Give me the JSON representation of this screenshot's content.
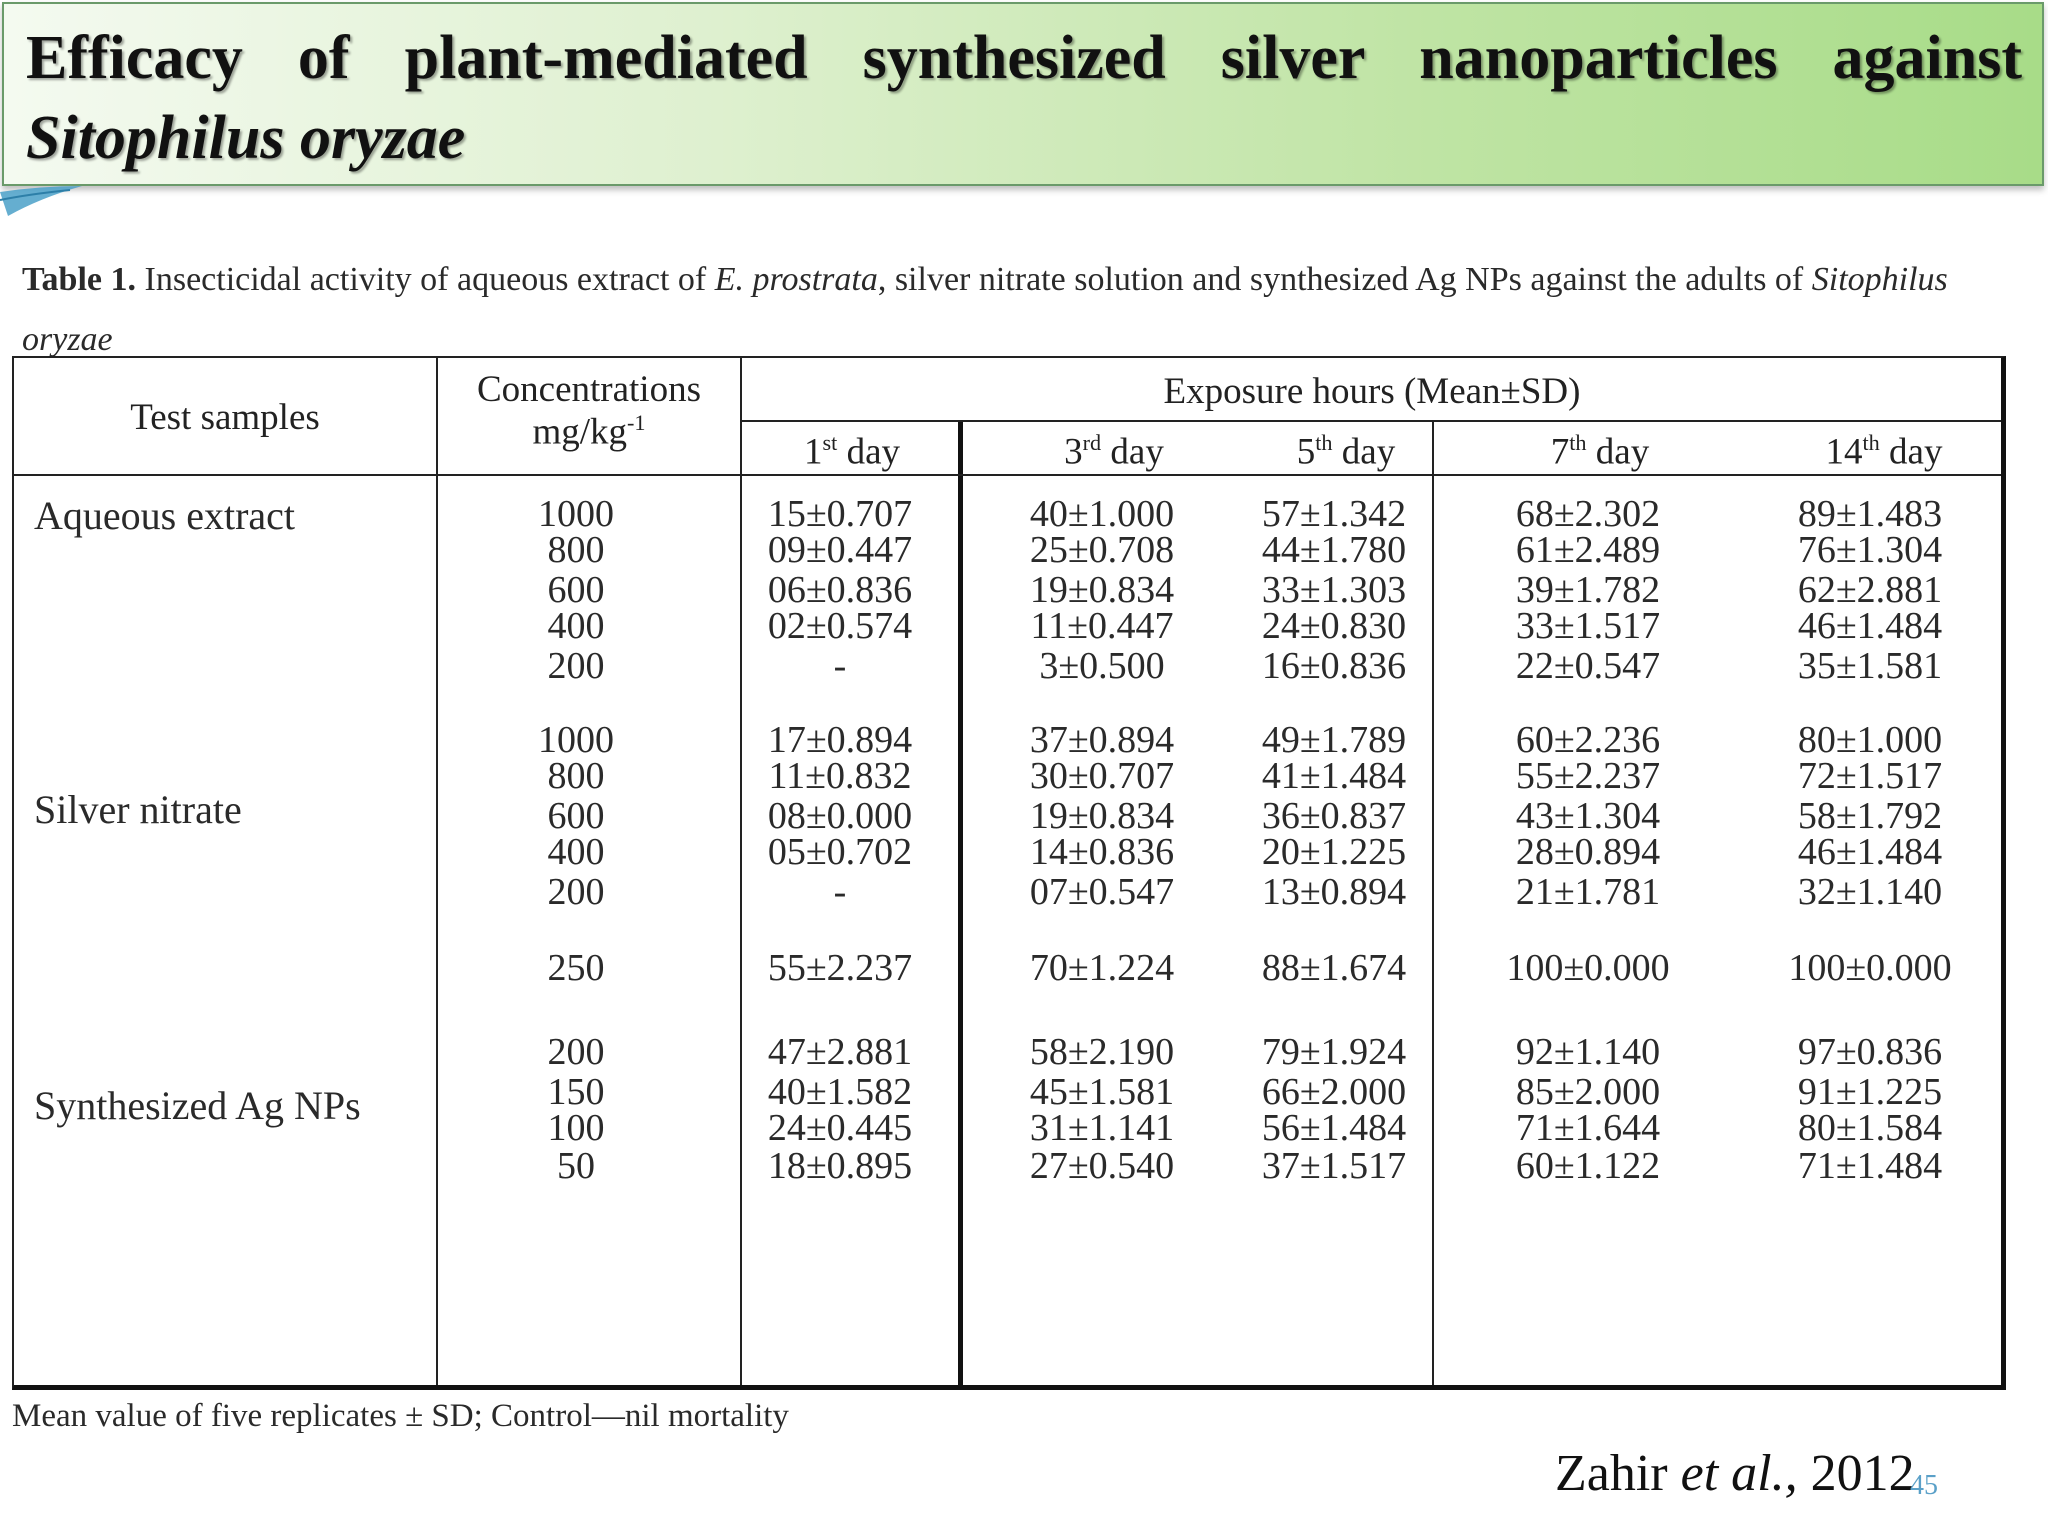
{
  "title": {
    "line1": "Efficacy of plant-mediated synthesized silver nanoparticles against",
    "line2": "Sitophilus oryzae"
  },
  "caption": {
    "label": "Table 1.",
    "text_a": " Insecticidal activity of aqueous extract of ",
    "species_a": "E. prostrata",
    "text_b": ", silver nitrate solution and synthesized Ag NPs against the adults of ",
    "species_b": "Sitophilus oryzae"
  },
  "table": {
    "headers": {
      "test_samples": "Test samples",
      "concentrations_line1": "Concentrations",
      "concentrations_line2": "mg/kg",
      "concentrations_sup": "-1",
      "exposure": "Exposure hours (Mean±SD)",
      "days": [
        {
          "num": "1",
          "sup": "st",
          "label": " day"
        },
        {
          "num": "3",
          "sup": "rd",
          "label": " day"
        },
        {
          "num": "5",
          "sup": "th",
          "label": " day"
        },
        {
          "num": "7",
          "sup": "th",
          "label": " day"
        },
        {
          "num": "14",
          "sup": "th",
          "label": " day"
        }
      ]
    },
    "groups": [
      {
        "name": "Aqueous extract"
      },
      {
        "name": "Silver nitrate"
      },
      {
        "name": "Synthesized Ag NPs"
      }
    ],
    "rows": [
      {
        "conc": "1000",
        "d1": "15±0.707",
        "d3": "40±1.000",
        "d5": "57±1.342",
        "d7": "68±2.302",
        "d14": "89±1.483"
      },
      {
        "conc": "800",
        "d1": "09±0.447",
        "d3": "25±0.708",
        "d5": "44±1.780",
        "d7": "61±2.489",
        "d14": "76±1.304"
      },
      {
        "conc": "600",
        "d1": "06±0.836",
        "d3": "19±0.834",
        "d5": "33±1.303",
        "d7": "39±1.782",
        "d14": "62±2.881"
      },
      {
        "conc": "400",
        "d1": "02±0.574",
        "d3": "11±0.447",
        "d5": "24±0.830",
        "d7": "33±1.517",
        "d14": "46±1.484"
      },
      {
        "conc": "200",
        "d1": "-",
        "d3": "3±0.500",
        "d5": "16±0.836",
        "d7": "22±0.547",
        "d14": "35±1.581"
      },
      {
        "conc": "1000",
        "d1": "17±0.894",
        "d3": "37±0.894",
        "d5": "49±1.789",
        "d7": "60±2.236",
        "d14": "80±1.000"
      },
      {
        "conc": "800",
        "d1": "11±0.832",
        "d3": "30±0.707",
        "d5": "41±1.484",
        "d7": "55±2.237",
        "d14": "72±1.517"
      },
      {
        "conc": "600",
        "d1": "08±0.000",
        "d3": "19±0.834",
        "d5": "36±0.837",
        "d7": "43±1.304",
        "d14": "58±1.792"
      },
      {
        "conc": "400",
        "d1": "05±0.702",
        "d3": "14±0.836",
        "d5": "20±1.225",
        "d7": "28±0.894",
        "d14": "46±1.484"
      },
      {
        "conc": "200",
        "d1": "-",
        "d3": "07±0.547",
        "d5": "13±0.894",
        "d7": "21±1.781",
        "d14": "32±1.140"
      },
      {
        "conc": "250",
        "d1": "55±2.237",
        "d3": "70±1.224",
        "d5": "88±1.674",
        "d7": "100±0.000",
        "d14": "100±0.000"
      },
      {
        "conc": "200",
        "d1": "47±2.881",
        "d3": "58±2.190",
        "d5": "79±1.924",
        "d7": "92±1.140",
        "d14": "97±0.836"
      },
      {
        "conc": "150",
        "d1": "40±1.582",
        "d3": "45±1.581",
        "d5": "66±2.000",
        "d7": "85±2.000",
        "d14": "91±1.225"
      },
      {
        "conc": "100",
        "d1": "24±0.445",
        "d3": "31±1.141",
        "d5": "56±1.484",
        "d7": "71±1.644",
        "d14": "80±1.584"
      },
      {
        "conc": "50",
        "d1": "18±0.895",
        "d3": "27±0.540",
        "d5": "37±1.517",
        "d7": "60±1.122",
        "d14": "71±1.484"
      }
    ]
  },
  "footnote": "Mean value of five replicates ± SD; Control—nil mortality",
  "citation": {
    "author": "Zahir ",
    "etal": "et al.,",
    "year": " 2012"
  },
  "page_number": "45",
  "colors": {
    "banner_start": "#f4faf0",
    "banner_end": "#a8dc88",
    "accent": "#4aa0c8"
  }
}
